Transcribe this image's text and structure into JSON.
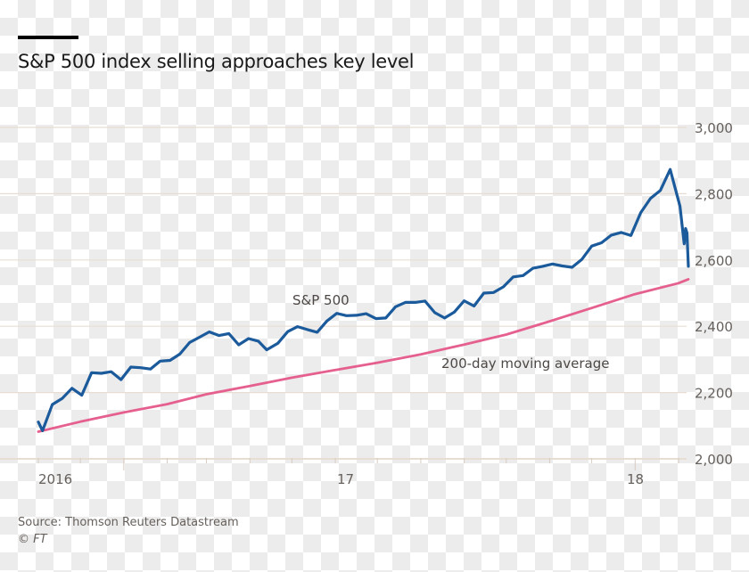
{
  "title": "S&P 500 index selling approaches key level",
  "source": "Source: Thomson Reuters Datastream",
  "copyright": "© FT",
  "chart_data": {
    "type": "line",
    "title": "S&P 500 index selling approaches key level",
    "xlabel": "",
    "ylabel": "",
    "xlim": [
      "2016-11-01",
      "2018-02-28"
    ],
    "ylim": [
      2000,
      3000
    ],
    "y_ticks": [
      2000,
      2200,
      2400,
      2600,
      2800,
      3000
    ],
    "y_tick_labels": [
      "2,000",
      "2,200",
      "2,400",
      "2,600",
      "2,800",
      "3,000"
    ],
    "x_tick_labels": [
      {
        "label": "2016",
        "date": "2016-11-01"
      },
      {
        "label": "17",
        "date": "2017-01-01"
      },
      {
        "label": "18",
        "date": "2018-01-01"
      }
    ],
    "y_axis_side": "right",
    "grid": true,
    "colors": {
      "sp500": "#1b5a9b",
      "ma200": "#e5608f",
      "grid": "#e8ddd3",
      "axis_text": "#66605c"
    },
    "series": [
      {
        "name": "S&P 500",
        "x": [
          "2016-11-01",
          "2016-11-04",
          "2016-11-11",
          "2016-11-18",
          "2016-11-25",
          "2016-12-02",
          "2016-12-09",
          "2016-12-16",
          "2016-12-23",
          "2016-12-30",
          "2017-01-06",
          "2017-01-13",
          "2017-01-20",
          "2017-01-27",
          "2017-02-03",
          "2017-02-10",
          "2017-02-17",
          "2017-02-24",
          "2017-03-03",
          "2017-03-10",
          "2017-03-17",
          "2017-03-24",
          "2017-03-31",
          "2017-04-07",
          "2017-04-13",
          "2017-04-21",
          "2017-04-28",
          "2017-05-05",
          "2017-05-12",
          "2017-05-19",
          "2017-05-26",
          "2017-06-02",
          "2017-06-09",
          "2017-06-16",
          "2017-06-23",
          "2017-06-30",
          "2017-07-07",
          "2017-07-14",
          "2017-07-21",
          "2017-07-28",
          "2017-08-04",
          "2017-08-11",
          "2017-08-18",
          "2017-08-25",
          "2017-09-01",
          "2017-09-08",
          "2017-09-15",
          "2017-09-22",
          "2017-09-29",
          "2017-10-06",
          "2017-10-13",
          "2017-10-20",
          "2017-10-27",
          "2017-11-03",
          "2017-11-10",
          "2017-11-17",
          "2017-11-24",
          "2017-12-01",
          "2017-12-08",
          "2017-12-15",
          "2017-12-22",
          "2017-12-29",
          "2018-01-05",
          "2018-01-12",
          "2018-01-19",
          "2018-01-26",
          "2018-02-02",
          "2018-02-05",
          "2018-02-06",
          "2018-02-07",
          "2018-02-08"
        ],
        "values": [
          2111,
          2085,
          2164,
          2182,
          2213,
          2192,
          2260,
          2258,
          2263,
          2239,
          2277,
          2275,
          2271,
          2295,
          2297,
          2316,
          2351,
          2367,
          2383,
          2372,
          2378,
          2344,
          2363,
          2355,
          2329,
          2349,
          2384,
          2399,
          2390,
          2382,
          2416,
          2439,
          2432,
          2433,
          2438,
          2423,
          2425,
          2459,
          2472,
          2472,
          2476,
          2441,
          2425,
          2443,
          2477,
          2461,
          2500,
          2502,
          2519,
          2549,
          2553,
          2575,
          2581,
          2588,
          2582,
          2578,
          2602,
          2642,
          2652,
          2675,
          2683,
          2674,
          2743,
          2786,
          2810,
          2873,
          2762,
          2649,
          2695,
          2682,
          2581
        ],
        "label": "S&P 500"
      },
      {
        "name": "200-day moving average",
        "x": [
          "2016-11-01",
          "2016-12-01",
          "2017-01-01",
          "2017-02-01",
          "2017-03-01",
          "2017-04-01",
          "2017-05-01",
          "2017-06-01",
          "2017-07-01",
          "2017-08-01",
          "2017-09-01",
          "2017-10-01",
          "2017-11-01",
          "2017-12-01",
          "2018-01-01",
          "2018-02-01",
          "2018-02-08"
        ],
        "values": [
          2082,
          2112,
          2140,
          2165,
          2195,
          2220,
          2245,
          2268,
          2290,
          2315,
          2345,
          2375,
          2415,
          2455,
          2497,
          2530,
          2542
        ],
        "label": "200-day moving average"
      }
    ]
  }
}
